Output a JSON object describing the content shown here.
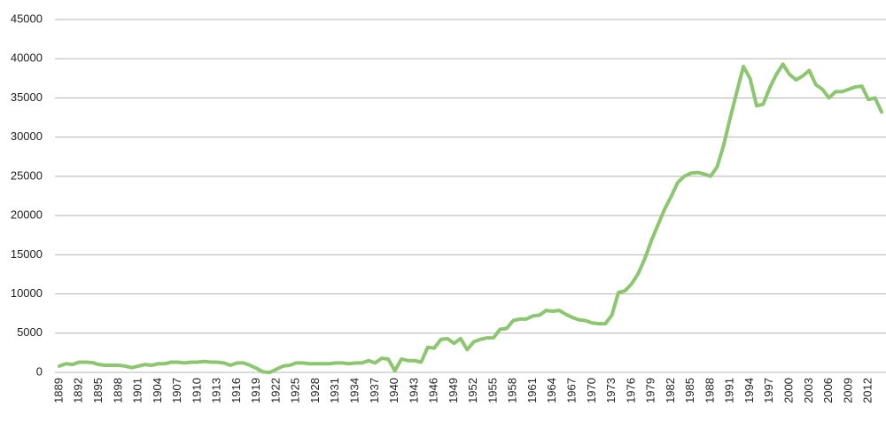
{
  "chart_data": {
    "type": "line",
    "x": [
      1889,
      1890,
      1891,
      1892,
      1893,
      1894,
      1895,
      1896,
      1897,
      1898,
      1899,
      1900,
      1901,
      1902,
      1903,
      1904,
      1905,
      1906,
      1907,
      1908,
      1909,
      1910,
      1911,
      1912,
      1913,
      1914,
      1915,
      1916,
      1917,
      1918,
      1919,
      1920,
      1921,
      1922,
      1923,
      1924,
      1925,
      1926,
      1927,
      1928,
      1929,
      1930,
      1931,
      1932,
      1933,
      1934,
      1935,
      1936,
      1937,
      1938,
      1939,
      1940,
      1941,
      1942,
      1943,
      1944,
      1945,
      1946,
      1947,
      1948,
      1949,
      1950,
      1951,
      1952,
      1953,
      1954,
      1955,
      1956,
      1957,
      1958,
      1959,
      1960,
      1961,
      1962,
      1963,
      1964,
      1965,
      1966,
      1967,
      1968,
      1969,
      1970,
      1971,
      1972,
      1973,
      1974,
      1975,
      1976,
      1977,
      1978,
      1979,
      1980,
      1981,
      1982,
      1983,
      1984,
      1985,
      1986,
      1987,
      1988,
      1989,
      1990,
      1991,
      1992,
      1993,
      1994,
      1995,
      1996,
      1997,
      1998,
      1999,
      2000,
      2001,
      2002,
      2003,
      2004,
      2005,
      2006,
      2007,
      2008,
      2009,
      2010,
      2011,
      2012,
      2013,
      2014
    ],
    "values": [
      800,
      1100,
      1000,
      1300,
      1300,
      1250,
      1000,
      900,
      900,
      900,
      800,
      600,
      800,
      1000,
      900,
      1100,
      1100,
      1300,
      1300,
      1200,
      1300,
      1300,
      1400,
      1300,
      1300,
      1200,
      900,
      1200,
      1200,
      900,
      500,
      50,
      0,
      400,
      800,
      900,
      1200,
      1200,
      1100,
      1100,
      1100,
      1100,
      1200,
      1200,
      1100,
      1200,
      1200,
      1500,
      1200,
      1800,
      1700,
      200,
      1700,
      1500,
      1500,
      1300,
      3200,
      3100,
      4200,
      4300,
      3700,
      4300,
      2900,
      3900,
      4200,
      4400,
      4400,
      5500,
      5600,
      6600,
      6800,
      6800,
      7200,
      7300,
      7900,
      7800,
      7900,
      7400,
      7000,
      6700,
      6600,
      6300,
      6200,
      6200,
      7300,
      10200,
      10400,
      11300,
      12600,
      14500,
      16800,
      18800,
      20800,
      22400,
      24200,
      25000,
      25400,
      25500,
      25300,
      25000,
      26200,
      29000,
      32500,
      35800,
      39000,
      37500,
      34000,
      34200,
      36300,
      38000,
      39300,
      38000,
      37300,
      37800,
      38500,
      36700,
      36100,
      35000,
      35800,
      35800,
      36100,
      36400,
      36500,
      34800,
      35000,
      33200
    ],
    "color": "#8cc66f",
    "xlim": [
      1889,
      2014
    ],
    "xticks": [
      1889,
      1892,
      1895,
      1898,
      1901,
      1904,
      1907,
      1910,
      1913,
      1916,
      1919,
      1922,
      1925,
      1928,
      1931,
      1934,
      1937,
      1940,
      1943,
      1946,
      1949,
      1952,
      1955,
      1958,
      1961,
      1964,
      1967,
      1970,
      1973,
      1976,
      1979,
      1982,
      1985,
      1988,
      1991,
      1994,
      1997,
      2000,
      2003,
      2006,
      2009,
      2012
    ],
    "ylim": [
      0,
      45000
    ],
    "yticks": [
      0,
      5000,
      10000,
      15000,
      20000,
      25000,
      30000,
      35000,
      40000,
      45000
    ],
    "grid": true
  }
}
